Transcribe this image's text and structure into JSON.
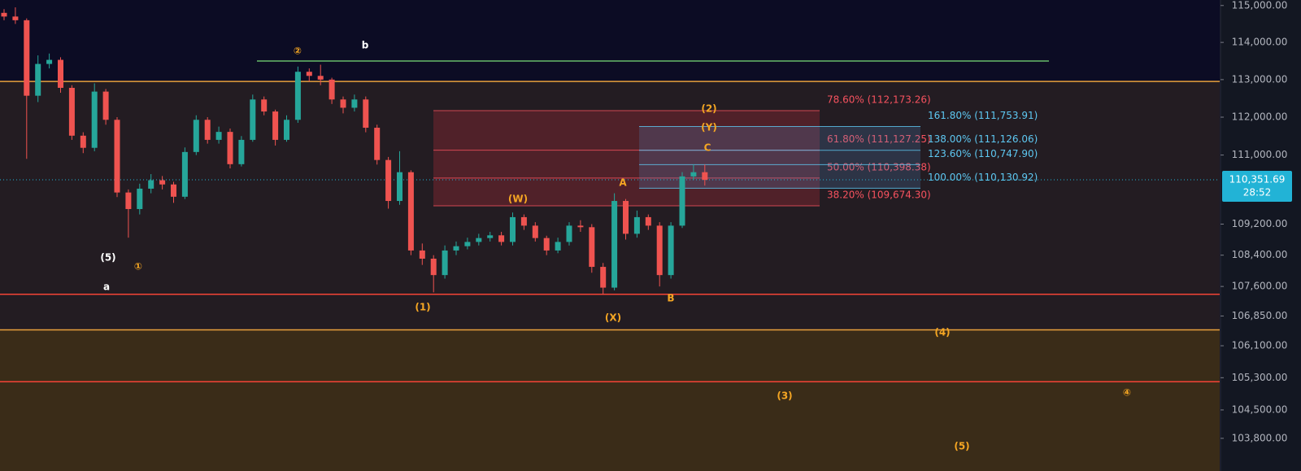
{
  "chart_data": {
    "type": "candlestick",
    "log_scale": true,
    "ylim": [
      103000,
      115150
    ],
    "yticks": [
      {
        "value": 115000,
        "label": "115,000.00"
      },
      {
        "value": 114000,
        "label": "114,000.00"
      },
      {
        "value": 113000,
        "label": "113,000.00"
      },
      {
        "value": 112000,
        "label": "112,000.00"
      },
      {
        "value": 111000,
        "label": "111,000.00"
      },
      {
        "value": 109200,
        "label": "109,200.00"
      },
      {
        "value": 108400,
        "label": "108,400.00"
      },
      {
        "value": 107600,
        "label": "107,600.00"
      },
      {
        "value": 106850,
        "label": "106,850.00"
      },
      {
        "value": 106100,
        "label": "106,100.00"
      },
      {
        "value": 105300,
        "label": "105,300.00"
      },
      {
        "value": 104500,
        "label": "104,500.00"
      },
      {
        "value": 103800,
        "label": "103,800.00"
      }
    ],
    "up_color": "#26a69a",
    "down_color": "#ef5350",
    "open": [
      114800,
      114700,
      114600,
      112570,
      113420,
      113530,
      112780,
      111510,
      111190,
      112680,
      111930,
      110020,
      109590,
      110120,
      110340,
      110230,
      109910,
      111080,
      111930,
      111400,
      111610,
      110760,
      111400,
      112470,
      112150,
      111400,
      111930,
      113210,
      113100,
      113000,
      112470,
      112250,
      112470,
      111720,
      110870,
      109800,
      110550,
      108520,
      108310,
      107890,
      108520,
      108630,
      108740,
      108840,
      108910,
      108740,
      109380,
      109160,
      108840,
      108520,
      108740,
      109160,
      109120,
      108100,
      107570,
      109800,
      108950,
      109380,
      109160,
      107890,
      109160,
      110440,
      110550
    ],
    "high": [
      114900,
      114950,
      114650,
      113650,
      113700,
      113600,
      112850,
      111600,
      112900,
      112750,
      112000,
      110100,
      110250,
      110500,
      110450,
      110300,
      111200,
      112050,
      112000,
      111750,
      111700,
      111500,
      112600,
      112550,
      112200,
      112050,
      113350,
      113300,
      113400,
      113050,
      112550,
      112600,
      112550,
      111800,
      110950,
      111100,
      110600,
      108700,
      108400,
      108650,
      108750,
      108850,
      108950,
      109000,
      109000,
      109500,
      109450,
      109250,
      108900,
      108850,
      109250,
      109300,
      109200,
      108200,
      110000,
      109850,
      109550,
      109450,
      109250,
      109250,
      110550,
      110750,
      110750
    ],
    "low": [
      114600,
      114500,
      110900,
      112400,
      113300,
      112650,
      111400,
      111050,
      111100,
      111800,
      109900,
      108850,
      109450,
      110000,
      110100,
      109750,
      109850,
      111000,
      111300,
      111300,
      110650,
      110700,
      111350,
      112050,
      111250,
      111350,
      111850,
      112950,
      112850,
      112350,
      112100,
      112150,
      111600,
      110750,
      109600,
      109700,
      108400,
      108150,
      107450,
      107800,
      108400,
      108550,
      108650,
      108750,
      108650,
      108650,
      109050,
      108750,
      108400,
      108450,
      108650,
      109000,
      107950,
      107400,
      107500,
      108800,
      108850,
      109050,
      107600,
      107800,
      109100,
      110350,
      110200
    ],
    "close": [
      114700,
      114600,
      112570,
      113420,
      113530,
      112780,
      111510,
      111190,
      112680,
      111930,
      110020,
      109590,
      110120,
      110340,
      110230,
      109910,
      111080,
      111930,
      111400,
      111610,
      110760,
      111400,
      112470,
      112150,
      111400,
      111930,
      113210,
      113100,
      113000,
      112470,
      112250,
      112470,
      111720,
      110870,
      109800,
      110550,
      108520,
      108310,
      107890,
      108520,
      108630,
      108740,
      108840,
      108910,
      108740,
      109380,
      109160,
      108840,
      108520,
      108740,
      109160,
      109120,
      108100,
      107570,
      109800,
      108950,
      109380,
      109160,
      107890,
      109160,
      110440,
      110550,
      110350
    ],
    "zones": [
      {
        "from": 112950,
        "to": 106500,
        "color": "#231c22"
      },
      {
        "from": 106500,
        "to": 103000,
        "color": "#3a2c18"
      }
    ],
    "hlines": [
      {
        "value": 112950,
        "color": "#e8a03c"
      },
      {
        "value": 113500,
        "color": "#66bb6a"
      },
      {
        "value": 107400,
        "color": "#f44336"
      },
      {
        "value": 106500,
        "color": "#e8a03c"
      },
      {
        "value": 105200,
        "color": "#f44336"
      }
    ],
    "fib_retracement": {
      "color": "#f7525f",
      "fill": "rgba(242,54,69,0.22)",
      "levels": [
        {
          "value": 112173.26,
          "label": "78.60% (112,173.26)"
        },
        {
          "value": 111127.25,
          "label": "61.80% (111,127.25)"
        },
        {
          "value": 110398.38,
          "label": "50.00% (110,398.38)"
        },
        {
          "value": 109674.3,
          "label": "38.20% (109,674.30)"
        }
      ]
    },
    "fib_extension": {
      "color": "#5ec8f2",
      "fill": "rgba(80,140,200,0.22)",
      "levels": [
        {
          "value": 111753.91,
          "label": "161.80% (111,753.91)"
        },
        {
          "value": 111126.06,
          "label": "138.00% (111,126.06)"
        },
        {
          "value": 110747.9,
          "label": "123.60% (110,747.90)"
        },
        {
          "value": 110130.92,
          "label": "100.00% (110,130.92)"
        }
      ]
    },
    "current_price": {
      "value": 110351.69,
      "label": "110,351.69",
      "timer": "28:52",
      "color": "#22b3d6"
    },
    "annotations": [
      {
        "text": "②",
        "color": "#f5a623"
      },
      {
        "text": "b",
        "color": "#ffffff"
      },
      {
        "text": "(5)",
        "color": "#ffffff"
      },
      {
        "text": "①",
        "color": "#f5a623"
      },
      {
        "text": "a",
        "color": "#ffffff"
      },
      {
        "text": "(1)",
        "color": "#f5a623"
      },
      {
        "text": "(W)",
        "color": "#f5a623"
      },
      {
        "text": "A",
        "color": "#f5a623"
      },
      {
        "text": "(X)",
        "color": "#f5a623"
      },
      {
        "text": "B",
        "color": "#f5a623"
      },
      {
        "text": "C",
        "color": "#f5a623"
      },
      {
        "text": "(Y)",
        "color": "#f5a623"
      },
      {
        "text": "(2)",
        "color": "#f5a623"
      },
      {
        "text": "(4)",
        "color": "#f5a623"
      },
      {
        "text": "(3)",
        "color": "#f5a623"
      },
      {
        "text": "④",
        "color": "#f5a623"
      },
      {
        "text": "(5)",
        "color": "#f5a623"
      }
    ]
  }
}
